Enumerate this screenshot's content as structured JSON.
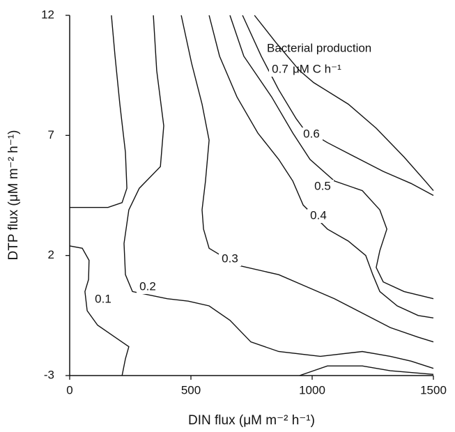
{
  "chart_data": {
    "type": "contour",
    "xlabel": "DIN flux (μM m⁻² h⁻¹)",
    "ylabel": "DTP flux (μM m⁻² h⁻¹)",
    "annotations": [
      "Bacterial production",
      "μM C h⁻¹"
    ],
    "xlim": [
      0,
      1500
    ],
    "xticks": [
      0,
      500,
      1000,
      1500
    ],
    "ylim": [
      -3,
      12
    ],
    "yticks": [
      -3,
      2,
      7,
      12
    ],
    "color": "#111111",
    "series": [
      {
        "name": "0.1",
        "x": [
          0,
          86,
          158,
          216,
          236,
          230,
          207,
          187,
          172,
          null,
          0,
          52,
          80,
          78,
          63,
          72,
          115,
          187,
          244,
          230,
          216
        ],
        "y": [
          4.0,
          4.0,
          4.0,
          4.2,
          4.8,
          6.3,
          8.3,
          10.3,
          12,
          null,
          2.4,
          2.3,
          1.8,
          1.0,
          0.5,
          -0.3,
          -0.9,
          -1.4,
          -1.8,
          -2.3,
          -3
        ]
      },
      {
        "name": "0.2",
        "x": [
          345,
          359,
          388,
          374,
          287,
          244,
          224,
          230,
          259,
          402,
          489,
          575,
          661,
          747,
          862,
          1034,
          1207,
          1322,
          1408,
          1500,
          null,
          948,
          1063,
          1207,
          1322,
          1500
        ],
        "y": [
          12,
          9.7,
          7.4,
          5.7,
          4.8,
          3.9,
          2.5,
          1.2,
          0.5,
          0.2,
          0.1,
          -0.1,
          -0.7,
          -1.6,
          -2.0,
          -2.2,
          -2.0,
          -2.2,
          -2.4,
          -2.7,
          null,
          -3,
          -2.6,
          -2.6,
          -2.8,
          -2.95
        ]
      },
      {
        "name": "0.3",
        "x": [
          460,
          503,
          546,
          575,
          560,
          546,
          552,
          575,
          690,
          862,
          977,
          1092,
          1207,
          1322,
          1437,
          1500
        ],
        "y": [
          12,
          10.0,
          8.3,
          6.8,
          5.1,
          3.9,
          3.1,
          2.3,
          1.6,
          1.2,
          0.7,
          0.2,
          -0.4,
          -1.0,
          -1.4,
          -1.6
        ]
      },
      {
        "name": "0.4",
        "x": [
          575,
          618,
          690,
          776,
          862,
          920,
          963,
          1063,
          1149,
          1221,
          1250,
          1279,
          1351,
          1437,
          1500
        ],
        "y": [
          12,
          10.3,
          8.6,
          7.1,
          6.0,
          5.1,
          4.1,
          3.1,
          2.6,
          2.0,
          1.2,
          0.5,
          -0.1,
          -0.5,
          -0.6
        ]
      },
      {
        "name": "0.5",
        "x": [
          661,
          718,
          833,
          920,
          991,
          1092,
          1207,
          1279,
          1308,
          1279,
          1264,
          1293,
          1379,
          1500
        ],
        "y": [
          12,
          10.3,
          8.6,
          7.1,
          6.0,
          5.1,
          4.7,
          3.9,
          3.1,
          2.2,
          1.5,
          0.9,
          0.5,
          0.2
        ]
      },
      {
        "name": "0.6",
        "x": [
          713,
          790,
          862,
          934,
          963,
          1063,
          1178,
          1293,
          1408,
          1500
        ],
        "y": [
          12,
          10.3,
          8.9,
          7.7,
          7.3,
          6.7,
          6.1,
          5.5,
          5.0,
          4.5
        ]
      },
      {
        "name": "0.7",
        "x": [
          762,
          848,
          948,
          1006,
          1149,
          1264,
          1379,
          1466,
          1500
        ],
        "y": [
          12,
          10.9,
          9.7,
          9.2,
          8.3,
          7.3,
          6.1,
          5.1,
          4.7
        ]
      }
    ]
  }
}
